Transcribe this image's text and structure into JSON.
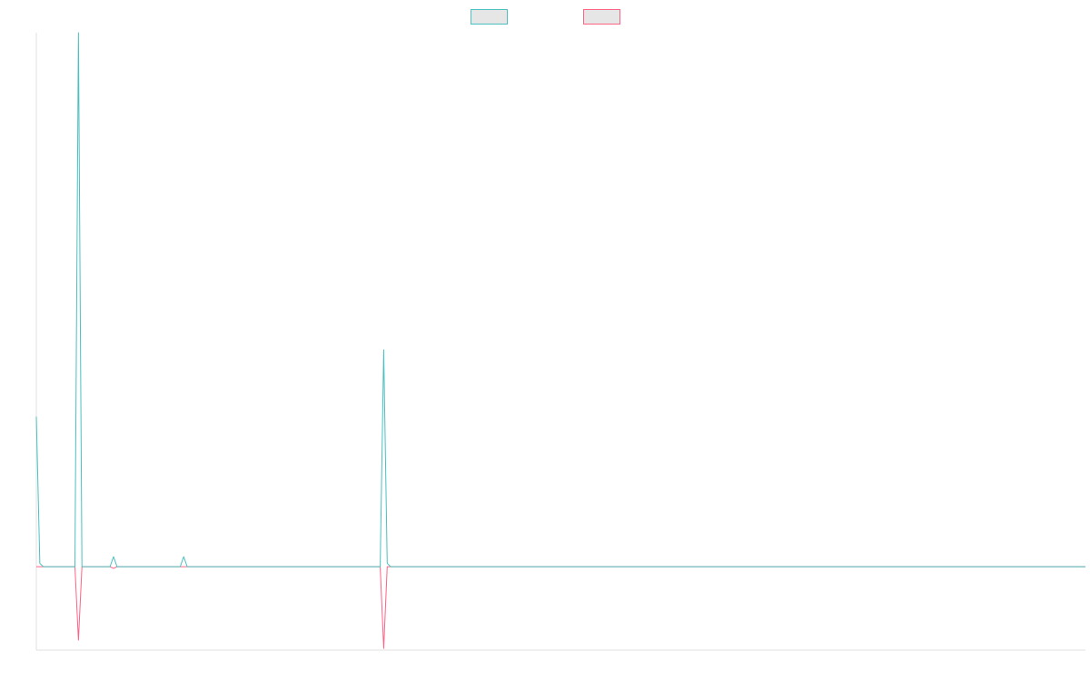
{
  "chart_data": {
    "type": "line",
    "title": "",
    "xlabel": "",
    "ylabel": "",
    "grid": false,
    "legend_position": "top-center",
    "x_count": 300,
    "ylim": [
      -2.5,
      16
    ],
    "series": [
      {
        "color": "#4bc0c0",
        "fill": "#e6e6e6",
        "points": [
          [
            0,
            4.5
          ],
          [
            1,
            0.1
          ],
          [
            2,
            0
          ],
          [
            3,
            0
          ],
          [
            4,
            0
          ],
          [
            5,
            0
          ],
          [
            6,
            0
          ],
          [
            7,
            0
          ],
          [
            8,
            0
          ],
          [
            9,
            0
          ],
          [
            10,
            0
          ],
          [
            11,
            0
          ],
          [
            12,
            16
          ],
          [
            13,
            0
          ],
          [
            14,
            0
          ],
          [
            15,
            0
          ],
          [
            16,
            0
          ],
          [
            17,
            0
          ],
          [
            18,
            0
          ],
          [
            19,
            0
          ],
          [
            20,
            0
          ],
          [
            21,
            0
          ],
          [
            22,
            0.3
          ],
          [
            23,
            0
          ],
          [
            24,
            0
          ],
          [
            25,
            0
          ],
          [
            26,
            0
          ],
          [
            27,
            0
          ],
          [
            28,
            0
          ],
          [
            29,
            0
          ],
          [
            30,
            0
          ],
          [
            31,
            0
          ],
          [
            32,
            0
          ],
          [
            33,
            0
          ],
          [
            34,
            0
          ],
          [
            35,
            0
          ],
          [
            36,
            0
          ],
          [
            37,
            0
          ],
          [
            38,
            0
          ],
          [
            39,
            0
          ],
          [
            40,
            0
          ],
          [
            41,
            0
          ],
          [
            42,
            0.3
          ],
          [
            43,
            0
          ],
          [
            44,
            0
          ],
          [
            98,
            0
          ],
          [
            99,
            6.5
          ],
          [
            100,
            0.1
          ],
          [
            101,
            0
          ],
          [
            299,
            0
          ]
        ]
      },
      {
        "color": "#ff6384",
        "fill": "#e6e6e6",
        "points": [
          [
            0,
            0
          ],
          [
            11,
            0
          ],
          [
            12,
            -2.2
          ],
          [
            13,
            0
          ],
          [
            21,
            0
          ],
          [
            22,
            -0.05
          ],
          [
            23,
            0
          ],
          [
            98,
            0
          ],
          [
            99,
            -2.45
          ],
          [
            100,
            0
          ],
          [
            299,
            0
          ]
        ]
      }
    ]
  }
}
